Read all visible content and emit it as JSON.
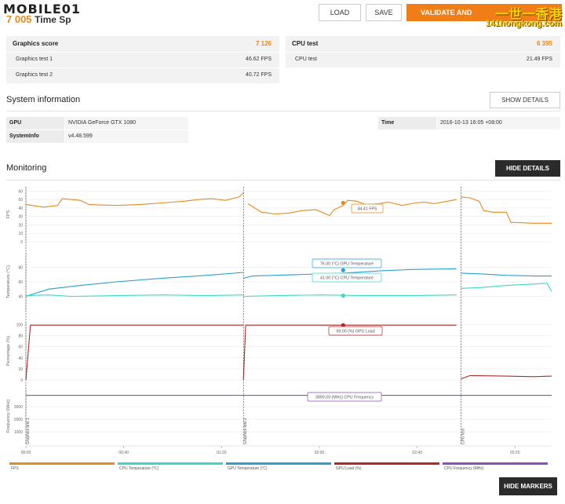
{
  "header": {
    "logo_text": "MOBILE01",
    "score_partial": "7 005",
    "score_suffix": "Time Sp",
    "load_label": "LOAD",
    "save_label": "SAVE",
    "validate_label": "VALIDATE AND",
    "watermark_line1": "一世一香港",
    "watermark_line2": "141hongkong.com"
  },
  "graphics": {
    "title": "Graphics score",
    "score": "7 126",
    "tests": [
      {
        "label": "Graphics test 1",
        "value": "46.62 FPS"
      },
      {
        "label": "Graphics test 2",
        "value": "40.72 FPS"
      }
    ]
  },
  "cpu": {
    "title": "CPU test",
    "score": "6 395",
    "tests": [
      {
        "label": "CPU test",
        "value": "21.49 FPS"
      }
    ]
  },
  "system": {
    "title": "System information",
    "show_details_label": "SHOW DETAILS",
    "gpu_key": "GPU",
    "gpu_value": "NVIDIA GeForce GTX 1080",
    "sysinfo_key": "SystemInfo",
    "sysinfo_value": "v4.48.599",
    "time_key": "Time",
    "time_value": "2016-10-13 16:05 +08:00"
  },
  "monitoring": {
    "title": "Monitoring",
    "hide_details_label": "HIDE DETAILS",
    "hide_markers_label": "HIDE MARKERS",
    "x_ticks": [
      "00:00",
      "00:40",
      "01:20",
      "02:00",
      "02:40",
      "03:20"
    ],
    "markers": [
      "Graphics test 1",
      "Graphics test 2",
      "CPU test"
    ],
    "tooltips": {
      "fps": "44.41 FPS",
      "gpu_temp": "76.00 (°C) GPU Temperature",
      "cpu_temp": "41.00 (°C) CPU Temperature",
      "gpu_load": "99.00 (%) GPU Load",
      "cpu_freq": "3899.09 (MHz) CPU Frequency"
    },
    "legend": [
      {
        "label": "FPS",
        "color": "#e58a1f"
      },
      {
        "label": "CPU Temperature (°C)",
        "color": "#3dd6c9"
      },
      {
        "label": "GPU Temperature (°C)",
        "color": "#2a9fd0"
      },
      {
        "label": "GPU Load (%)",
        "color": "#b02a2a"
      },
      {
        "label": "CPU Frequency (MHz)",
        "color": "#8a4fb8"
      }
    ]
  },
  "chart_data": [
    {
      "type": "line",
      "ylabel": "FPS",
      "ylim": [
        0,
        65
      ],
      "y_ticks": [
        "60",
        "50",
        "40",
        "30",
        "20",
        "10",
        "0"
      ],
      "series": [
        {
          "name": "FPS",
          "color": "#e58a1f",
          "segments": [
            [
              [
                0,
                44
              ],
              [
                4,
                41
              ],
              [
                7,
                43
              ],
              [
                8,
                51
              ],
              [
                12,
                49
              ],
              [
                14,
                44
              ],
              [
                20,
                43
              ],
              [
                25,
                44
              ],
              [
                30,
                46
              ],
              [
                35,
                48
              ],
              [
                38,
                50
              ],
              [
                41,
                51
              ],
              [
                44,
                49
              ],
              [
                47,
                53
              ],
              [
                48,
                58
              ]
            ],
            [
              [
                49,
                45
              ],
              [
                52,
                35
              ],
              [
                55,
                33
              ],
              [
                58,
                34
              ],
              [
                61,
                37
              ],
              [
                64,
                38
              ],
              [
                67,
                31
              ],
              [
                68,
                38
              ],
              [
                70,
                43
              ],
              [
                71,
                49
              ],
              [
                73,
                48
              ],
              [
                75,
                44
              ],
              [
                78,
                45
              ],
              [
                80,
                47
              ],
              [
                83,
                43
              ],
              [
                86,
                46
              ],
              [
                88,
                47
              ],
              [
                90,
                45
              ],
              [
                93,
                48
              ],
              [
                95,
                50
              ]
            ],
            [
              [
                96,
                53
              ],
              [
                98,
                52
              ],
              [
                100,
                48
              ],
              [
                101,
                37
              ],
              [
                103,
                35
              ],
              [
                106,
                35
              ],
              [
                107,
                23
              ],
              [
                112,
                22
              ],
              [
                116,
                22
              ]
            ]
          ]
        }
      ]
    },
    {
      "type": "line",
      "ylabel": "Temperature (°C)",
      "ylim": [
        20,
        100
      ],
      "y_ticks": [
        "80",
        "60",
        "40"
      ],
      "series": [
        {
          "name": "GPU Temperature",
          "color": "#2a9fd0",
          "segments": [
            [
              [
                0,
                40
              ],
              [
                5,
                50
              ],
              [
                12,
                55
              ],
              [
                20,
                60
              ],
              [
                30,
                65
              ],
              [
                40,
                69
              ],
              [
                48,
                73
              ]
            ],
            [
              [
                48,
                65
              ],
              [
                50,
                68
              ],
              [
                60,
                70
              ],
              [
                70,
                72
              ],
              [
                78,
                75
              ],
              [
                85,
                77
              ],
              [
                95,
                78
              ]
            ],
            [
              [
                96,
                72
              ],
              [
                100,
                71
              ],
              [
                106,
                69
              ],
              [
                112,
                68
              ],
              [
                116,
                68
              ]
            ]
          ]
        },
        {
          "name": "CPU Temperature",
          "color": "#3dd6c9",
          "segments": [
            [
              [
                0,
                41
              ],
              [
                5,
                42
              ],
              [
                10,
                40
              ],
              [
                20,
                41
              ],
              [
                30,
                42
              ],
              [
                40,
                41
              ],
              [
                48,
                42
              ]
            ],
            [
              [
                48,
                40
              ],
              [
                55,
                41
              ],
              [
                65,
                42
              ],
              [
                75,
                41
              ],
              [
                85,
                41
              ],
              [
                95,
                42
              ]
            ],
            [
              [
                96,
                51
              ],
              [
                100,
                52
              ],
              [
                106,
                55
              ],
              [
                112,
                57
              ],
              [
                115,
                58
              ],
              [
                116,
                47
              ]
            ]
          ]
        }
      ]
    },
    {
      "type": "line",
      "ylabel": "Percentage (%)",
      "ylim": [
        0,
        105
      ],
      "y_ticks": [
        "100",
        "80",
        "60",
        "40",
        "20",
        "0"
      ],
      "series": [
        {
          "name": "GPU Load",
          "color": "#b02a2a",
          "segments": [
            [
              [
                0,
                0
              ],
              [
                1,
                99
              ],
              [
                48,
                99
              ]
            ],
            [
              [
                48,
                0
              ],
              [
                48.5,
                99
              ],
              [
                95,
                99
              ]
            ],
            [
              [
                96,
                2
              ],
              [
                98,
                8
              ],
              [
                106,
                7
              ],
              [
                112,
                6
              ],
              [
                116,
                7
              ]
            ]
          ]
        }
      ]
    },
    {
      "type": "line",
      "ylabel": "Frequency (MHz)",
      "ylim": [
        0,
        4500
      ],
      "y_ticks": [
        "3000",
        "2000",
        "1000"
      ],
      "series": [
        {
          "name": "CPU Frequency",
          "color": "#8a4fb8",
          "segments": [
            [
              [
                0,
                3899
              ],
              [
                116,
                3899
              ]
            ]
          ]
        }
      ]
    }
  ]
}
